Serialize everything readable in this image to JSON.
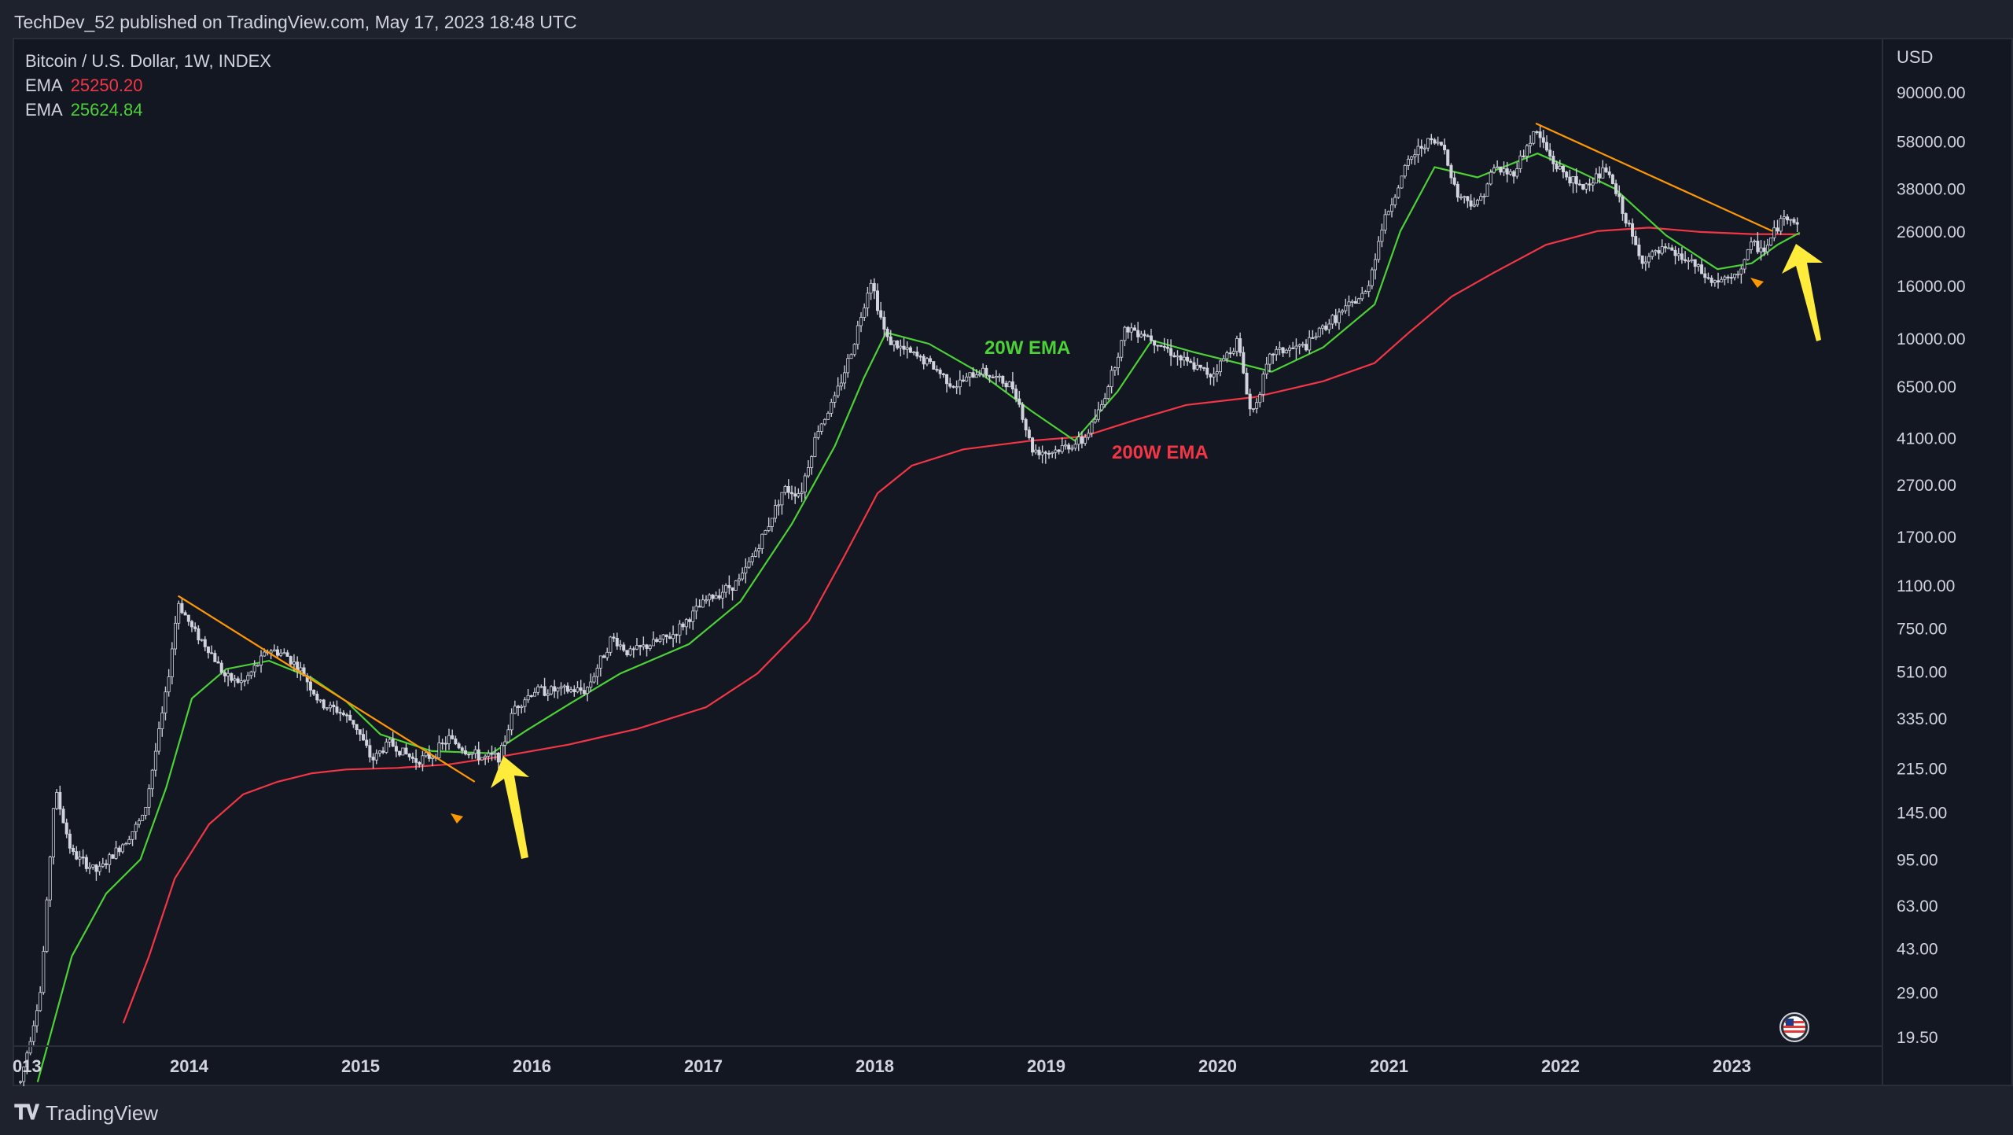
{
  "header": {
    "publish_line": "TechDev_52 published on TradingView.com, May 17, 2023 18:48 UTC"
  },
  "legend": {
    "symbol": "Bitcoin / U.S. Dollar, 1W, INDEX",
    "ema1": {
      "label": "EMA",
      "value": "25250.20"
    },
    "ema2": {
      "label": "EMA",
      "value": "25624.84"
    }
  },
  "footer": {
    "brand": "TradingView"
  },
  "colors": {
    "ema200": "#f23645",
    "ema20": "#4cd137",
    "trendline": "#ff9800",
    "arrow": "#ffeb3b",
    "candle": "#d1d4dc"
  },
  "chart_data": {
    "type": "candlestick",
    "symbol": "Bitcoin / U.S. Dollar, 1W, INDEX",
    "currency": "USD",
    "y_scale": "log",
    "y_ticks": [
      "90000.00",
      "58000.00",
      "38000.00",
      "26000.00",
      "16000.00",
      "10000.00",
      "6500.00",
      "4100.00",
      "2700.00",
      "1700.00",
      "1100.00",
      "750.00",
      "510.00",
      "335.00",
      "215.00",
      "145.00",
      "95.00",
      "63.00",
      "43.00",
      "29.00",
      "19.50"
    ],
    "x_ticks": [
      "013",
      "2014",
      "2015",
      "2016",
      "2017",
      "2018",
      "2019",
      "2020",
      "2021",
      "2022",
      "2023"
    ],
    "price_path": [
      [
        2013.0,
        13
      ],
      [
        2013.12,
        30
      ],
      [
        2013.2,
        180
      ],
      [
        2013.3,
        100
      ],
      [
        2013.45,
        85
      ],
      [
        2013.6,
        110
      ],
      [
        2013.72,
        140
      ],
      [
        2013.85,
        420
      ],
      [
        2013.92,
        950
      ],
      [
        2014.0,
        750
      ],
      [
        2014.1,
        620
      ],
      [
        2014.2,
        480
      ],
      [
        2014.3,
        460
      ],
      [
        2014.45,
        620
      ],
      [
        2014.55,
        590
      ],
      [
        2014.65,
        500
      ],
      [
        2014.75,
        380
      ],
      [
        2014.85,
        360
      ],
      [
        2014.95,
        320
      ],
      [
        2015.05,
        230
      ],
      [
        2015.15,
        270
      ],
      [
        2015.3,
        230
      ],
      [
        2015.4,
        240
      ],
      [
        2015.5,
        280
      ],
      [
        2015.6,
        250
      ],
      [
        2015.7,
        235
      ],
      [
        2015.8,
        240
      ],
      [
        2015.88,
        370
      ],
      [
        2016.0,
        430
      ],
      [
        2016.3,
        430
      ],
      [
        2016.45,
        690
      ],
      [
        2016.55,
        600
      ],
      [
        2016.8,
        700
      ],
      [
        2017.0,
        960
      ],
      [
        2017.2,
        1150
      ],
      [
        2017.35,
        1800
      ],
      [
        2017.45,
        2600
      ],
      [
        2017.55,
        2500
      ],
      [
        2017.65,
        4400
      ],
      [
        2017.75,
        5800
      ],
      [
        2017.85,
        9000
      ],
      [
        2017.96,
        17000
      ],
      [
        2018.05,
        10000
      ],
      [
        2018.15,
        9000
      ],
      [
        2018.3,
        8000
      ],
      [
        2018.45,
        6500
      ],
      [
        2018.6,
        7500
      ],
      [
        2018.8,
        6400
      ],
      [
        2018.9,
        3700
      ],
      [
        2019.0,
        3600
      ],
      [
        2019.2,
        4000
      ],
      [
        2019.3,
        5300
      ],
      [
        2019.45,
        11000
      ],
      [
        2019.55,
        10500
      ],
      [
        2019.65,
        9500
      ],
      [
        2019.8,
        8000
      ],
      [
        2019.95,
        7200
      ],
      [
        2020.1,
        9800
      ],
      [
        2020.18,
        5000
      ],
      [
        2020.3,
        8800
      ],
      [
        2020.5,
        9300
      ],
      [
        2020.6,
        11000
      ],
      [
        2020.85,
        15000
      ],
      [
        2020.95,
        28000
      ],
      [
        2021.1,
        49000
      ],
      [
        2021.2,
        58000
      ],
      [
        2021.3,
        56000
      ],
      [
        2021.38,
        36000
      ],
      [
        2021.5,
        33000
      ],
      [
        2021.6,
        46000
      ],
      [
        2021.7,
        43000
      ],
      [
        2021.84,
        64000
      ],
      [
        2021.95,
        47000
      ],
      [
        2022.1,
        38000
      ],
      [
        2022.25,
        45000
      ],
      [
        2022.35,
        31000
      ],
      [
        2022.45,
        20000
      ],
      [
        2022.6,
        22000
      ],
      [
        2022.75,
        19500
      ],
      [
        2022.86,
        16500
      ],
      [
        2023.0,
        17000
      ],
      [
        2023.1,
        23000
      ],
      [
        2023.18,
        22000
      ],
      [
        2023.26,
        28000
      ],
      [
        2023.32,
        30000
      ],
      [
        2023.38,
        27000
      ]
    ],
    "series": [
      {
        "name": "200W EMA",
        "values": [
          [
            2013.6,
            22
          ],
          [
            2013.75,
            40
          ],
          [
            2013.9,
            80
          ],
          [
            2014.1,
            130
          ],
          [
            2014.3,
            170
          ],
          [
            2014.5,
            190
          ],
          [
            2014.7,
            205
          ],
          [
            2014.9,
            212
          ],
          [
            2015.2,
            215
          ],
          [
            2015.5,
            222
          ],
          [
            2015.8,
            238
          ],
          [
            2016.2,
            265
          ],
          [
            2016.6,
            305
          ],
          [
            2017.0,
            370
          ],
          [
            2017.3,
            500
          ],
          [
            2017.6,
            800
          ],
          [
            2017.8,
            1400
          ],
          [
            2018.0,
            2500
          ],
          [
            2018.2,
            3200
          ],
          [
            2018.5,
            3700
          ],
          [
            2018.9,
            4000
          ],
          [
            2019.2,
            4150
          ],
          [
            2019.5,
            4800
          ],
          [
            2019.8,
            5500
          ],
          [
            2020.2,
            5900
          ],
          [
            2020.6,
            6800
          ],
          [
            2020.9,
            8000
          ],
          [
            2021.1,
            10500
          ],
          [
            2021.35,
            14500
          ],
          [
            2021.6,
            18000
          ],
          [
            2021.9,
            23000
          ],
          [
            2022.2,
            26000
          ],
          [
            2022.5,
            26800
          ],
          [
            2022.8,
            25800
          ],
          [
            2023.1,
            25300
          ],
          [
            2023.38,
            25250
          ]
        ]
      },
      {
        "name": "20W EMA",
        "values": [
          [
            2013.1,
            13
          ],
          [
            2013.3,
            40
          ],
          [
            2013.5,
            70
          ],
          [
            2013.7,
            95
          ],
          [
            2013.85,
            180
          ],
          [
            2014.0,
            400
          ],
          [
            2014.2,
            520
          ],
          [
            2014.45,
            560
          ],
          [
            2014.7,
            480
          ],
          [
            2014.9,
            390
          ],
          [
            2015.1,
            290
          ],
          [
            2015.4,
            250
          ],
          [
            2015.75,
            245
          ],
          [
            2015.95,
            300
          ],
          [
            2016.2,
            380
          ],
          [
            2016.5,
            500
          ],
          [
            2016.9,
            650
          ],
          [
            2017.2,
            950
          ],
          [
            2017.5,
            1900
          ],
          [
            2017.75,
            3800
          ],
          [
            2017.92,
            7000
          ],
          [
            2018.05,
            10500
          ],
          [
            2018.3,
            9500
          ],
          [
            2018.6,
            7300
          ],
          [
            2018.9,
            5200
          ],
          [
            2019.15,
            4000
          ],
          [
            2019.4,
            6200
          ],
          [
            2019.6,
            9800
          ],
          [
            2019.85,
            8800
          ],
          [
            2020.1,
            8000
          ],
          [
            2020.3,
            7400
          ],
          [
            2020.6,
            9200
          ],
          [
            2020.9,
            13500
          ],
          [
            2021.05,
            26000
          ],
          [
            2021.25,
            46000
          ],
          [
            2021.5,
            42000
          ],
          [
            2021.85,
            52000
          ],
          [
            2022.1,
            44000
          ],
          [
            2022.3,
            38000
          ],
          [
            2022.6,
            25000
          ],
          [
            2022.9,
            18500
          ],
          [
            2023.1,
            19500
          ],
          [
            2023.25,
            23000
          ],
          [
            2023.38,
            25625
          ]
        ]
      }
    ],
    "trendlines": [
      [
        [
          2013.92,
          1000
        ],
        [
          2015.65,
          190
        ]
      ],
      [
        [
          2021.84,
          68000
        ],
        [
          2023.22,
          26000
        ]
      ]
    ],
    "annotations": [
      "20W EMA",
      "200W EMA"
    ],
    "last_candle": {
      "x": 2023.38,
      "open": 27500,
      "high": 30500,
      "low": 26500,
      "close": 27000
    }
  }
}
